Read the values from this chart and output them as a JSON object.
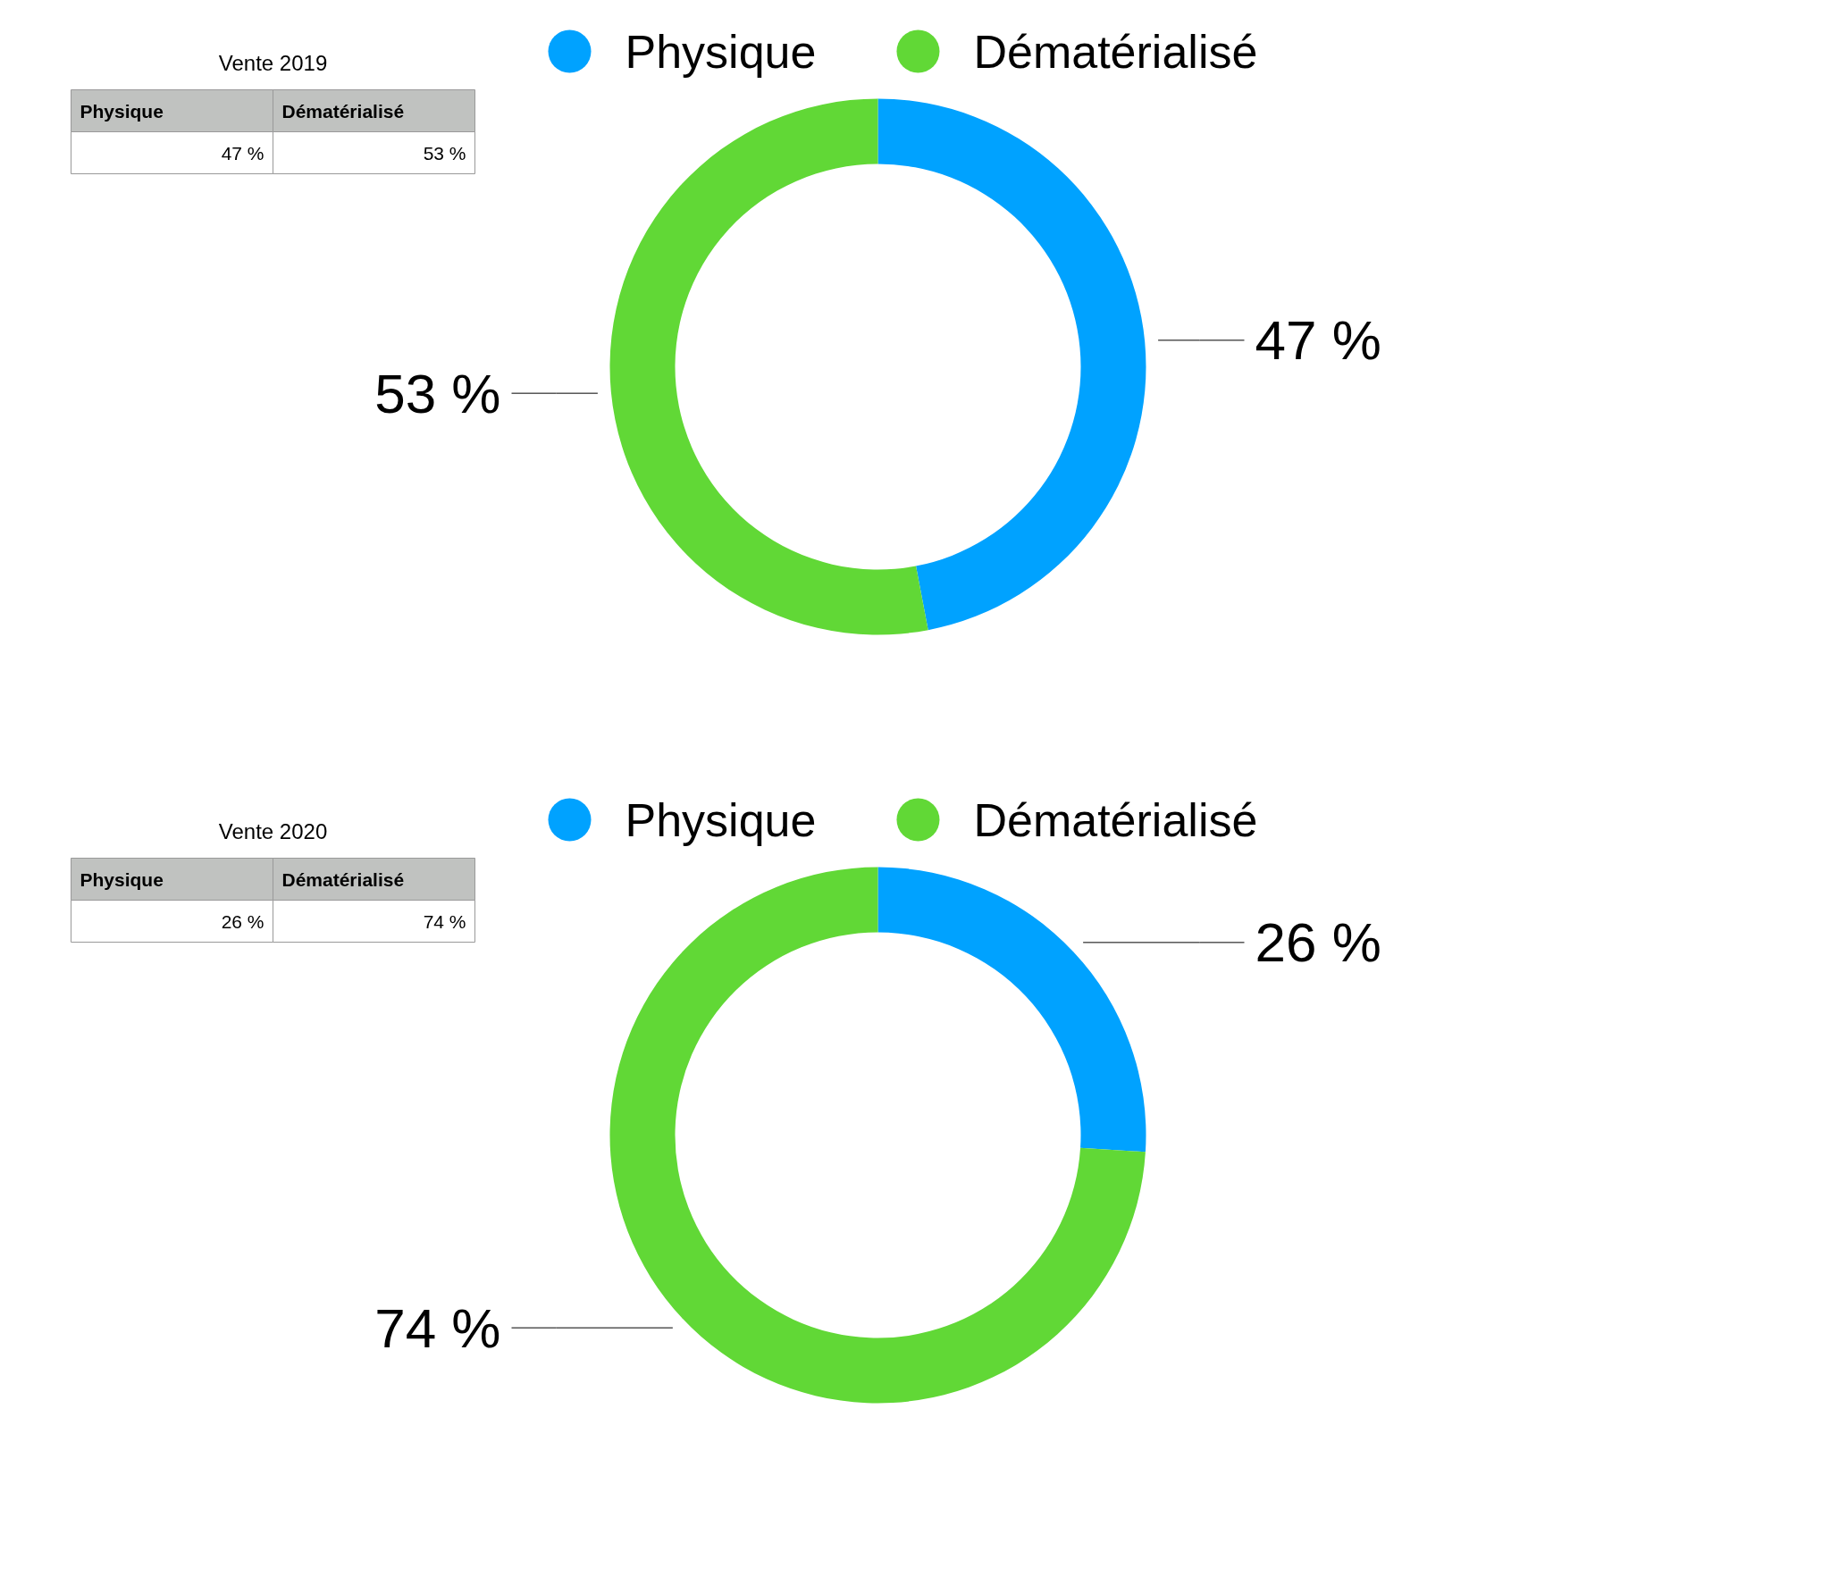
{
  "chart_data": [
    {
      "type": "donut",
      "title": "Vente 2019",
      "categories": [
        "Physique",
        "Dématérialisé"
      ],
      "values": [
        47,
        53
      ],
      "colors": [
        "#00a2ff",
        "#61d836"
      ],
      "value_labels": [
        "47 %",
        "53 %"
      ],
      "legend": "top"
    },
    {
      "type": "donut",
      "title": "Vente 2020",
      "categories": [
        "Physique",
        "Dématérialisé"
      ],
      "values": [
        26,
        74
      ],
      "colors": [
        "#00a2ff",
        "#61d836"
      ],
      "value_labels": [
        "26 %",
        "74 %"
      ],
      "legend": "top"
    }
  ]
}
